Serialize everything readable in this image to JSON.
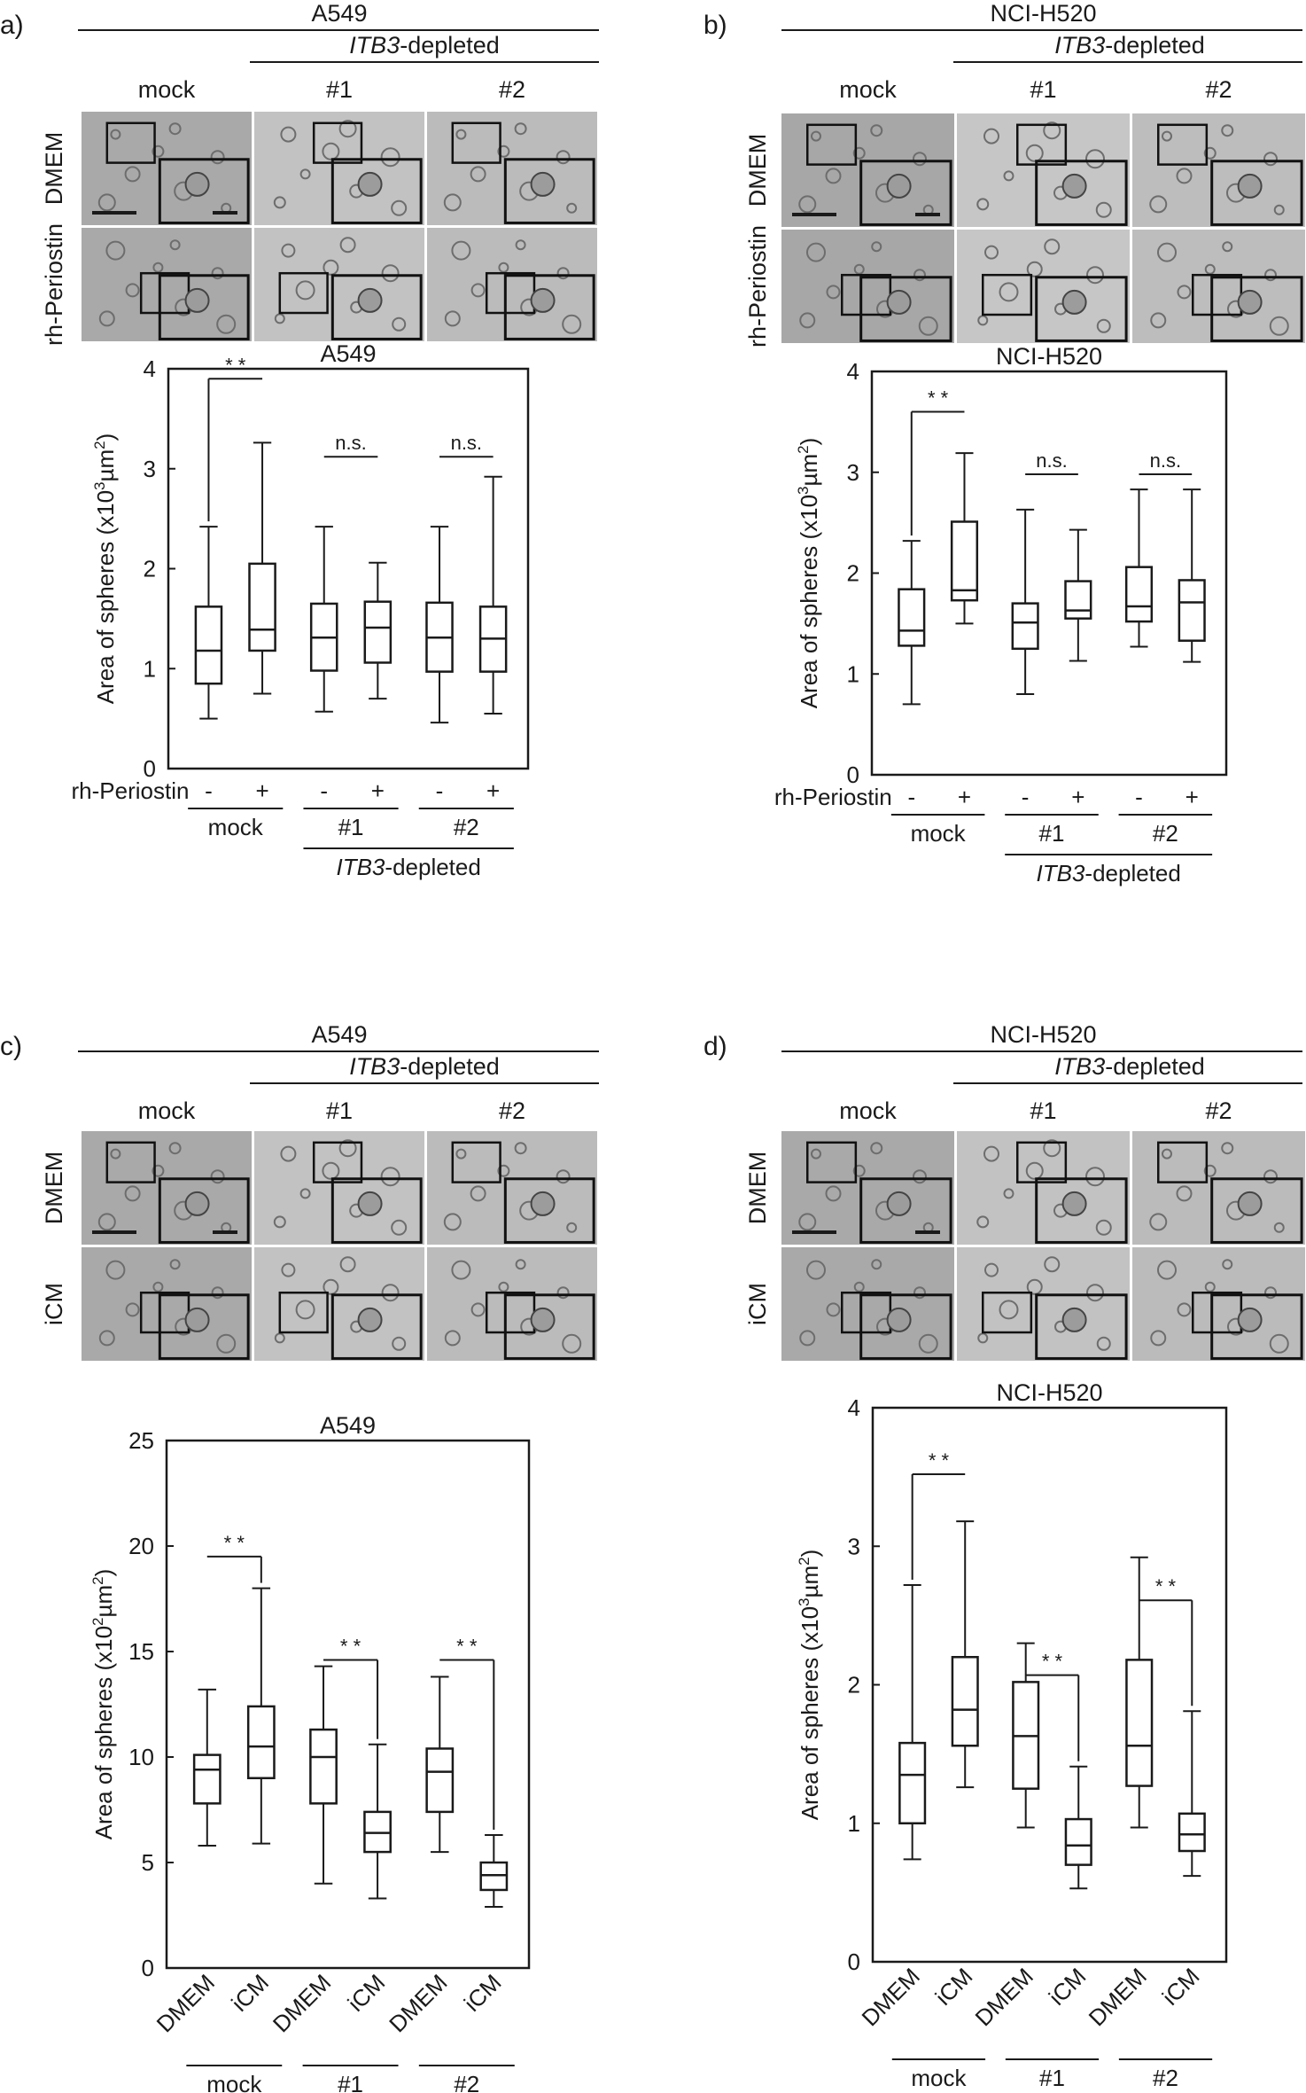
{
  "panels": [
    {
      "letter": "a)",
      "cell_line": "A549",
      "depleted_label": "ITB3-depleted",
      "gene": "ITB3",
      "depleted_suffix": "-depleted",
      "micro_columns": [
        "mock",
        "#1",
        "#2"
      ],
      "micro_rows": [
        "DMEM",
        "rh-Periostin"
      ],
      "treatment_row_label": "rh-Periostin",
      "chart_data": {
        "type": "boxplot",
        "title": "A549",
        "ylabel_pre": "Area of spheres (x10",
        "ylabel_exp": "3",
        "ylabel_mid": "µm",
        "ylabel_exp2": "2",
        "ylabel_post": ")",
        "ylim": [
          0,
          4
        ],
        "yticks": [
          "0",
          "1",
          "2",
          "3",
          "4"
        ],
        "categories": [
          "-",
          "+",
          "-",
          "+",
          "-",
          "+"
        ],
        "label_rotated": false,
        "groups": [
          "mock",
          "#1",
          "#2"
        ],
        "boxes": [
          {
            "min": 0.5,
            "q1": 0.85,
            "median": 1.18,
            "q3": 1.62,
            "max": 2.42
          },
          {
            "min": 0.75,
            "q1": 1.18,
            "median": 1.39,
            "q3": 2.05,
            "max": 3.26
          },
          {
            "min": 0.57,
            "q1": 0.98,
            "median": 1.31,
            "q3": 1.65,
            "max": 2.42
          },
          {
            "min": 0.7,
            "q1": 1.06,
            "median": 1.41,
            "q3": 1.67,
            "max": 2.06
          },
          {
            "min": 0.46,
            "q1": 0.97,
            "median": 1.31,
            "q3": 1.66,
            "max": 2.42
          },
          {
            "min": 0.55,
            "q1": 0.97,
            "median": 1.3,
            "q3": 1.62,
            "max": 2.92
          }
        ],
        "comparisons": [
          {
            "from": 0,
            "to": 1,
            "y": 3.9,
            "label": "* *",
            "style": "bracket"
          },
          {
            "from": 2,
            "to": 3,
            "y": 3.12,
            "label": "n.s.",
            "style": "line"
          },
          {
            "from": 4,
            "to": 5,
            "y": 3.12,
            "label": "n.s.",
            "style": "line"
          }
        ]
      }
    },
    {
      "letter": "b)",
      "cell_line": "NCI-H520",
      "depleted_label": "ITB3-depleted",
      "gene": "ITB3",
      "depleted_suffix": "-depleted",
      "micro_columns": [
        "mock",
        "#1",
        "#2"
      ],
      "micro_rows": [
        "DMEM",
        "rh-Periostin"
      ],
      "treatment_row_label": "rh-Periostin",
      "chart_data": {
        "type": "boxplot",
        "title": "NCI-H520",
        "ylabel_pre": "Area of spheres (x10",
        "ylabel_exp": "3",
        "ylabel_mid": "µm",
        "ylabel_exp2": "2",
        "ylabel_post": ")",
        "ylim": [
          0,
          4
        ],
        "yticks": [
          "0",
          "1",
          "2",
          "3",
          "4"
        ],
        "categories": [
          "-",
          "+",
          "-",
          "+",
          "-",
          "+"
        ],
        "label_rotated": false,
        "groups": [
          "mock",
          "#1",
          "#2"
        ],
        "boxes": [
          {
            "min": 0.7,
            "q1": 1.28,
            "median": 1.43,
            "q3": 1.84,
            "max": 2.32
          },
          {
            "min": 1.5,
            "q1": 1.73,
            "median": 1.83,
            "q3": 2.51,
            "max": 3.19
          },
          {
            "min": 0.8,
            "q1": 1.25,
            "median": 1.51,
            "q3": 1.7,
            "max": 2.63
          },
          {
            "min": 1.13,
            "q1": 1.55,
            "median": 1.63,
            "q3": 1.92,
            "max": 2.43
          },
          {
            "min": 1.27,
            "q1": 1.52,
            "median": 1.67,
            "q3": 2.06,
            "max": 2.83
          },
          {
            "min": 1.12,
            "q1": 1.33,
            "median": 1.71,
            "q3": 1.93,
            "max": 2.83
          }
        ],
        "comparisons": [
          {
            "from": 0,
            "to": 1,
            "y": 3.6,
            "label": "* *",
            "style": "bracket"
          },
          {
            "from": 2,
            "to": 3,
            "y": 2.98,
            "label": "n.s.",
            "style": "line"
          },
          {
            "from": 4,
            "to": 5,
            "y": 2.98,
            "label": "n.s.",
            "style": "line"
          }
        ]
      }
    },
    {
      "letter": "c)",
      "cell_line": "A549",
      "depleted_label": "ITB3-depleted",
      "gene": "ITB3",
      "depleted_suffix": "-depleted",
      "micro_columns": [
        "mock",
        "#1",
        "#2"
      ],
      "micro_rows": [
        "DMEM",
        "iCM"
      ],
      "treatment_row_label": "",
      "chart_data": {
        "type": "boxplot",
        "title": "A549",
        "ylabel_pre": "Area of spheres (x10",
        "ylabel_exp": "2",
        "ylabel_mid": "µm",
        "ylabel_exp2": "2",
        "ylabel_post": ")",
        "ylim": [
          0,
          25
        ],
        "yticks": [
          "0",
          "5",
          "10",
          "15",
          "20",
          "25"
        ],
        "categories": [
          "DMEM",
          "iCM",
          "DMEM",
          "iCM",
          "DMEM",
          "iCM"
        ],
        "label_rotated": true,
        "groups": [
          "mock",
          "#1",
          "#2"
        ],
        "boxes": [
          {
            "min": 5.8,
            "q1": 7.8,
            "median": 9.4,
            "q3": 10.1,
            "max": 13.2
          },
          {
            "min": 5.9,
            "q1": 9.0,
            "median": 10.5,
            "q3": 12.4,
            "max": 18.0
          },
          {
            "min": 4.0,
            "q1": 7.8,
            "median": 10.0,
            "q3": 11.3,
            "max": 14.3
          },
          {
            "min": 3.3,
            "q1": 5.5,
            "median": 6.4,
            "q3": 7.4,
            "max": 10.6
          },
          {
            "min": 5.5,
            "q1": 7.4,
            "median": 9.3,
            "q3": 10.4,
            "max": 13.8
          },
          {
            "min": 2.9,
            "q1": 3.7,
            "median": 4.4,
            "q3": 5.0,
            "max": 6.3
          }
        ],
        "comparisons": [
          {
            "from": 0,
            "to": 1,
            "y": 19.5,
            "label": "* *",
            "style": "bracket-right"
          },
          {
            "from": 2,
            "to": 3,
            "y": 14.6,
            "label": "* *",
            "style": "bracket-right"
          },
          {
            "from": 4,
            "to": 5,
            "y": 14.6,
            "label": "* *",
            "style": "bracket-right"
          }
        ]
      }
    },
    {
      "letter": "d)",
      "cell_line": "NCI-H520",
      "depleted_label": "ITB3-depleted",
      "gene": "ITB3",
      "depleted_suffix": "-depleted",
      "micro_columns": [
        "mock",
        "#1",
        "#2"
      ],
      "micro_rows": [
        "DMEM",
        "iCM"
      ],
      "treatment_row_label": "",
      "chart_data": {
        "type": "boxplot",
        "title": "NCI-H520",
        "ylabel_pre": "Area of spheres (x10",
        "ylabel_exp": "3",
        "ylabel_mid": "µm",
        "ylabel_exp2": "2",
        "ylabel_post": ")",
        "ylim": [
          0,
          4
        ],
        "yticks": [
          "0",
          "1",
          "2",
          "3",
          "4"
        ],
        "categories": [
          "DMEM",
          "iCM",
          "DMEM",
          "iCM",
          "DMEM",
          "iCM"
        ],
        "label_rotated": true,
        "groups": [
          "mock",
          "#1",
          "#2"
        ],
        "boxes": [
          {
            "min": 0.74,
            "q1": 1.0,
            "median": 1.35,
            "q3": 1.58,
            "max": 2.72
          },
          {
            "min": 1.26,
            "q1": 1.56,
            "median": 1.82,
            "q3": 2.2,
            "max": 3.18
          },
          {
            "min": 0.97,
            "q1": 1.25,
            "median": 1.63,
            "q3": 2.02,
            "max": 2.3
          },
          {
            "min": 0.53,
            "q1": 0.7,
            "median": 0.84,
            "q3": 1.03,
            "max": 1.41
          },
          {
            "min": 0.97,
            "q1": 1.27,
            "median": 1.56,
            "q3": 2.18,
            "max": 2.92
          },
          {
            "min": 0.62,
            "q1": 0.8,
            "median": 0.92,
            "q3": 1.07,
            "max": 1.81
          }
        ],
        "comparisons": [
          {
            "from": 0,
            "to": 1,
            "y": 3.52,
            "label": "* *",
            "style": "bracket-left"
          },
          {
            "from": 2,
            "to": 3,
            "y": 2.07,
            "label": "* *",
            "style": "bracket-right"
          },
          {
            "from": 4,
            "to": 5,
            "y": 2.61,
            "label": "* *",
            "style": "bracket-right"
          }
        ]
      }
    }
  ]
}
